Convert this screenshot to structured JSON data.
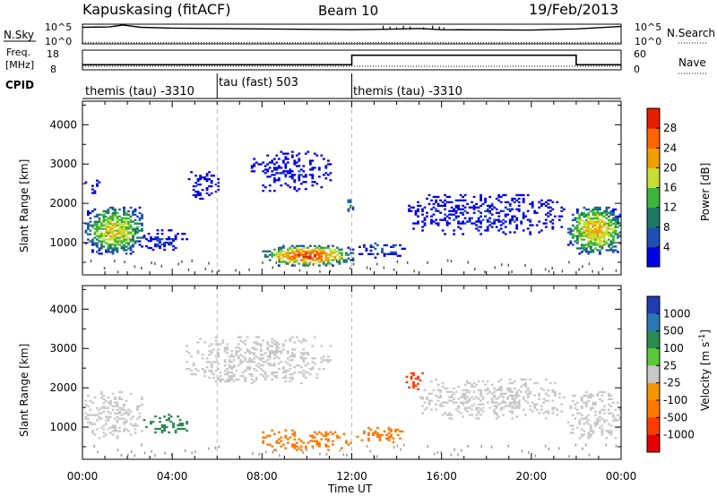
{
  "header": {
    "title": "Kapuskasing (fitACF)",
    "beam": "Beam 10",
    "date": "19/Feb/2013"
  },
  "noise_panel": {
    "left_label": "N.Sky",
    "left_ticks": [
      "10^5",
      "10^0"
    ],
    "right_label": "N.Search",
    "right_ticks": [
      "10^5",
      "10^0"
    ]
  },
  "freq_panel": {
    "left_label_line1": "Freq.",
    "left_label_line2": "[MHz]",
    "left_ticks": [
      "18",
      "8"
    ],
    "right_label": "Nave",
    "right_ticks": [
      "60",
      "0"
    ]
  },
  "cpid": {
    "label": "CPID",
    "segments": [
      {
        "name": "themis (tau) -3310",
        "start_h": 0,
        "end_h": 6
      },
      {
        "name": "tau (fast) 503",
        "start_h": 6,
        "end_h": 12
      },
      {
        "name": "themis (tau) -3310",
        "start_h": 12,
        "end_h": 24
      }
    ]
  },
  "axes": {
    "ylabel": "Slant Range [km]",
    "xlabel": "Time UT",
    "x_ticks": [
      "00:00",
      "04:00",
      "08:00",
      "12:00",
      "16:00",
      "20:00",
      "00:00"
    ],
    "y_ticks": [
      "1000",
      "2000",
      "3000",
      "4000"
    ]
  },
  "power_colorbar": {
    "label": "Power [dB]",
    "ticks": [
      "4",
      "8",
      "12",
      "16",
      "20",
      "24",
      "28"
    ],
    "colors": [
      "#0000e6",
      "#1e50b4",
      "#1e7864",
      "#3cb43c",
      "#c8dc32",
      "#f0a000",
      "#ff6400",
      "#e61e00"
    ]
  },
  "velocity_colorbar": {
    "label": "Velocity [m s^-1]",
    "ticks": [
      "1000",
      "500",
      "100",
      "25",
      "-25",
      "-100",
      "-500",
      "-1000"
    ],
    "colors": [
      "#1e3cb4",
      "#2878b4",
      "#2a8c50",
      "#5ac83c",
      "#c8c8c8",
      "#f09600",
      "#ff7800",
      "#ff3c00",
      "#e60000"
    ]
  },
  "chart_data": {
    "type": "heatmap",
    "x_range_h": [
      0,
      24
    ],
    "y_range_km": [
      180,
      4600
    ],
    "cpid_change_times_h": [
      6,
      12
    ],
    "noise": {
      "nsky_log10": [
        [
          0,
          4.2
        ],
        [
          1.2,
          4.3
        ],
        [
          1.8,
          4.8
        ],
        [
          2.6,
          4.2
        ],
        [
          4,
          4.0
        ],
        [
          8,
          3.8
        ],
        [
          12,
          3.6
        ],
        [
          13.5,
          3.7
        ],
        [
          15,
          3.9
        ],
        [
          16,
          3.6
        ],
        [
          20,
          3.5
        ],
        [
          22,
          3.8
        ],
        [
          24,
          4.4
        ]
      ],
      "nsearch_log10": [
        [
          0,
          0.3
        ],
        [
          24,
          0.3
        ]
      ]
    },
    "freq_mhz": [
      [
        0,
        10.6
      ],
      [
        12,
        10.6
      ],
      [
        12,
        15.4
      ],
      [
        22,
        15.4
      ],
      [
        22,
        10.6
      ],
      [
        24,
        10.6
      ]
    ],
    "nave": [
      [
        0,
        11
      ],
      [
        24,
        11
      ]
    ],
    "power_db": [
      {
        "t_start_h": 0.1,
        "t_end_h": 2.7,
        "r_start_km": 700,
        "r_end_km": 1900,
        "peak_db": 22
      },
      {
        "t_start_h": 0.1,
        "t_end_h": 0.8,
        "r_start_km": 2200,
        "r_end_km": 2600,
        "peak_db": 6
      },
      {
        "t_start_h": 2.7,
        "t_end_h": 4.6,
        "r_start_km": 800,
        "r_end_km": 1300,
        "peak_db": 8
      },
      {
        "t_start_h": 4.6,
        "t_end_h": 6.0,
        "r_start_km": 2100,
        "r_end_km": 2800,
        "peak_db": 5
      },
      {
        "t_start_h": 7.5,
        "t_end_h": 11.0,
        "r_start_km": 2300,
        "r_end_km": 3300,
        "peak_db": 5
      },
      {
        "t_start_h": 8.0,
        "t_end_h": 12.0,
        "r_start_km": 400,
        "r_end_km": 900,
        "peak_db": 30
      },
      {
        "t_start_h": 11.7,
        "t_end_h": 12.0,
        "r_start_km": 1700,
        "r_end_km": 2200,
        "peak_db": 14
      },
      {
        "t_start_h": 12.2,
        "t_end_h": 14.3,
        "r_start_km": 600,
        "r_end_km": 1000,
        "peak_db": 10
      },
      {
        "t_start_h": 14.5,
        "t_end_h": 21.5,
        "r_start_km": 1200,
        "r_end_km": 2200,
        "peak_db": 6
      },
      {
        "t_start_h": 21.6,
        "t_end_h": 24.0,
        "r_start_km": 700,
        "r_end_km": 1900,
        "peak_db": 24
      }
    ],
    "velocity_ms": [
      {
        "t_start_h": 0.1,
        "t_end_h": 2.7,
        "r_start_km": 700,
        "r_end_km": 1900,
        "median_ms": 0
      },
      {
        "t_start_h": 2.7,
        "t_end_h": 4.6,
        "r_start_km": 800,
        "r_end_km": 1300,
        "median_ms": 150
      },
      {
        "t_start_h": 4.6,
        "t_end_h": 11.0,
        "r_start_km": 2100,
        "r_end_km": 3300,
        "median_ms": 0
      },
      {
        "t_start_h": 8.0,
        "t_end_h": 12.0,
        "r_start_km": 400,
        "r_end_km": 900,
        "median_ms": -120
      },
      {
        "t_start_h": 12.2,
        "t_end_h": 14.3,
        "r_start_km": 600,
        "r_end_km": 1000,
        "median_ms": -120
      },
      {
        "t_start_h": 14.4,
        "t_end_h": 15.1,
        "r_start_km": 1900,
        "r_end_km": 2400,
        "median_ms": -600
      },
      {
        "t_start_h": 15.0,
        "t_end_h": 21.5,
        "r_start_km": 1200,
        "r_end_km": 2200,
        "median_ms": 0
      },
      {
        "t_start_h": 21.6,
        "t_end_h": 24.0,
        "r_start_km": 700,
        "r_end_km": 1900,
        "median_ms": 0
      }
    ]
  }
}
